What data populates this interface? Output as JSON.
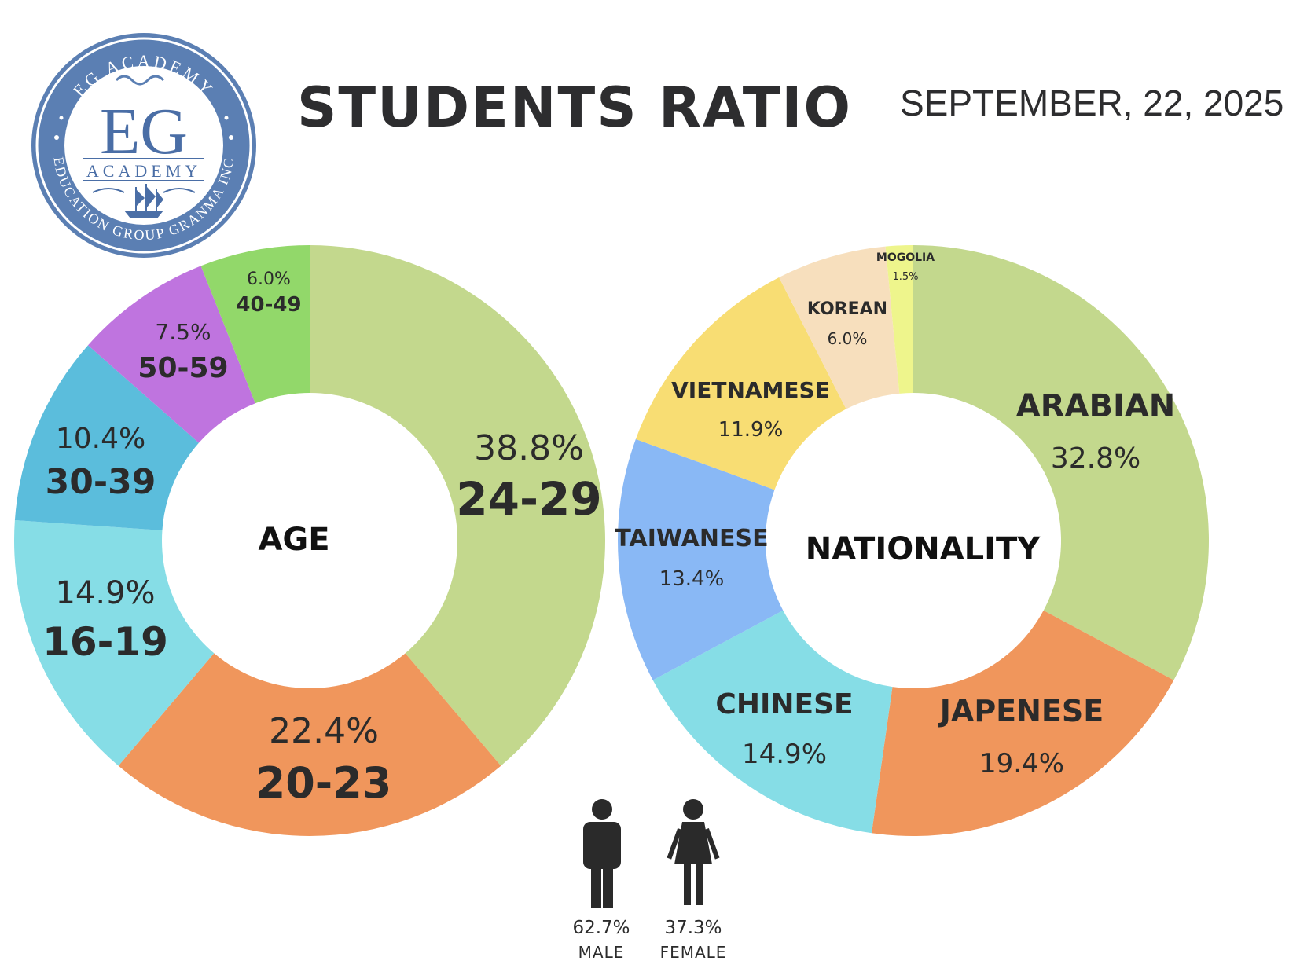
{
  "header": {
    "title": "STUDENTS RATIO",
    "date": "SEPTEMBER, 22, 2025"
  },
  "logo": {
    "monogram": "EG",
    "name": "ACADEMY",
    "ring_top": "EG ACADEMY",
    "ring_bottom": "EDUCATION GROUP GRANMA INC",
    "colors": {
      "ring": "#5b7fb3",
      "text": "#4a6ea6"
    }
  },
  "chart_data": [
    {
      "type": "pie",
      "donut": true,
      "center_label": "AGE",
      "categories": [
        "24-29",
        "20-23",
        "16-19",
        "30-39",
        "50-59",
        "40-49"
      ],
      "values": [
        38.8,
        22.4,
        14.9,
        10.4,
        7.5,
        6.0
      ],
      "value_labels": [
        "38.8%",
        "22.4%",
        "14.9%",
        "10.4%",
        "7.5%",
        "6.0%"
      ],
      "colors": [
        "#c3d88d",
        "#f0965c",
        "#86dde6",
        "#5bbddc",
        "#bf74df",
        "#92d86a"
      ],
      "start": "12 o'clock",
      "direction": "clockwise"
    },
    {
      "type": "pie",
      "donut": true,
      "center_label": "NATIONALITY",
      "categories": [
        "ARABIAN",
        "JAPENESE",
        "CHINESE",
        "TAIWANESE",
        "VIETNAMESE",
        "KOREAN",
        "MOGOLIA"
      ],
      "values": [
        32.8,
        19.4,
        14.9,
        13.4,
        11.9,
        6.0,
        1.5
      ],
      "value_labels": [
        "32.8%",
        "19.4%",
        "14.9%",
        "13.4%",
        "11.9%",
        "6.0%",
        "1.5%"
      ],
      "colors": [
        "#c3d88d",
        "#f0965c",
        "#86dde6",
        "#89b8f5",
        "#f8dd73",
        "#f7dfbd",
        "#eef58c"
      ],
      "start": "12 o'clock",
      "direction": "clockwise"
    }
  ],
  "gender": [
    {
      "label": "MALE",
      "value": 62.7,
      "value_label": "62.7%",
      "icon": "male-person-icon"
    },
    {
      "label": "FEMALE",
      "value": 37.3,
      "value_label": "37.3%",
      "icon": "female-person-icon"
    }
  ]
}
